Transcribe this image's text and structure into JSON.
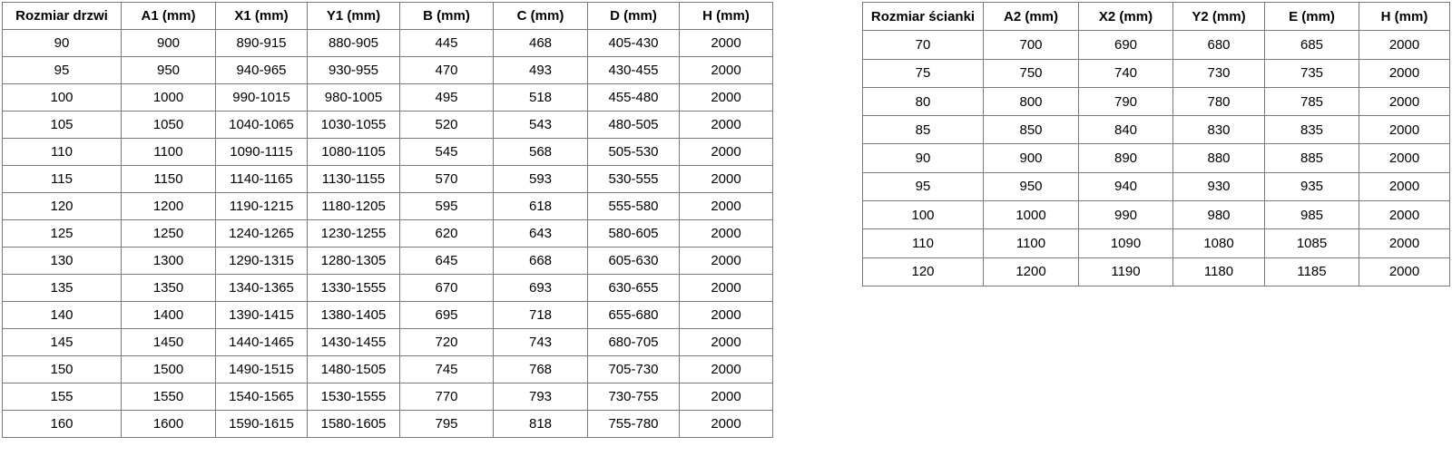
{
  "colors": {
    "background": "#ffffff",
    "border": "#7a7a7a",
    "text": "#000000"
  },
  "tables": [
    {
      "id": "door-table",
      "title": "Rozmiar drzwi",
      "headers": [
        "Rozmiar drzwi",
        "A1 (mm)",
        "X1 (mm)",
        "Y1 (mm)",
        "B (mm)",
        "C (mm)",
        "D (mm)",
        "H (mm)"
      ],
      "rows": [
        [
          "90",
          "900",
          "890-915",
          "880-905",
          "445",
          "468",
          "405-430",
          "2000"
        ],
        [
          "95",
          "950",
          "940-965",
          "930-955",
          "470",
          "493",
          "430-455",
          "2000"
        ],
        [
          "100",
          "1000",
          "990-1015",
          "980-1005",
          "495",
          "518",
          "455-480",
          "2000"
        ],
        [
          "105",
          "1050",
          "1040-1065",
          "1030-1055",
          "520",
          "543",
          "480-505",
          "2000"
        ],
        [
          "110",
          "1100",
          "1090-1115",
          "1080-1105",
          "545",
          "568",
          "505-530",
          "2000"
        ],
        [
          "115",
          "1150",
          "1140-1165",
          "1130-1155",
          "570",
          "593",
          "530-555",
          "2000"
        ],
        [
          "120",
          "1200",
          "1190-1215",
          "1180-1205",
          "595",
          "618",
          "555-580",
          "2000"
        ],
        [
          "125",
          "1250",
          "1240-1265",
          "1230-1255",
          "620",
          "643",
          "580-605",
          "2000"
        ],
        [
          "130",
          "1300",
          "1290-1315",
          "1280-1305",
          "645",
          "668",
          "605-630",
          "2000"
        ],
        [
          "135",
          "1350",
          "1340-1365",
          "1330-1555",
          "670",
          "693",
          "630-655",
          "2000"
        ],
        [
          "140",
          "1400",
          "1390-1415",
          "1380-1405",
          "695",
          "718",
          "655-680",
          "2000"
        ],
        [
          "145",
          "1450",
          "1440-1465",
          "1430-1455",
          "720",
          "743",
          "680-705",
          "2000"
        ],
        [
          "150",
          "1500",
          "1490-1515",
          "1480-1505",
          "745",
          "768",
          "705-730",
          "2000"
        ],
        [
          "155",
          "1550",
          "1540-1565",
          "1530-1555",
          "770",
          "793",
          "730-755",
          "2000"
        ],
        [
          "160",
          "1600",
          "1590-1615",
          "1580-1605",
          "795",
          "818",
          "755-780",
          "2000"
        ]
      ]
    },
    {
      "id": "wall-table",
      "title": "Rozmiar ścianki",
      "headers": [
        "Rozmiar ścianki",
        "A2 (mm)",
        "X2 (mm)",
        "Y2 (mm)",
        "E (mm)",
        "H (mm)"
      ],
      "rows": [
        [
          "70",
          "700",
          "690",
          "680",
          "685",
          "2000"
        ],
        [
          "75",
          "750",
          "740",
          "730",
          "735",
          "2000"
        ],
        [
          "80",
          "800",
          "790",
          "780",
          "785",
          "2000"
        ],
        [
          "85",
          "850",
          "840",
          "830",
          "835",
          "2000"
        ],
        [
          "90",
          "900",
          "890",
          "880",
          "885",
          "2000"
        ],
        [
          "95",
          "950",
          "940",
          "930",
          "935",
          "2000"
        ],
        [
          "100",
          "1000",
          "990",
          "980",
          "985",
          "2000"
        ],
        [
          "110",
          "1100",
          "1090",
          "1080",
          "1085",
          "2000"
        ],
        [
          "120",
          "1200",
          "1190",
          "1180",
          "1185",
          "2000"
        ]
      ]
    }
  ]
}
